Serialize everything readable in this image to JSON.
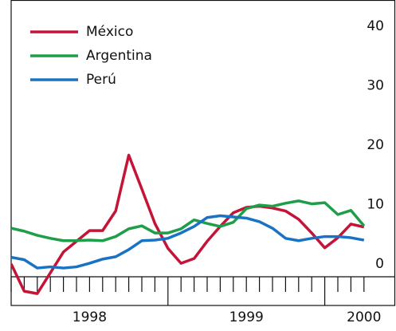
{
  "chart_data": {
    "type": "line",
    "categories": [
      null,
      null,
      null,
      null,
      null,
      null,
      "1998",
      null,
      null,
      null,
      null,
      null,
      null,
      null,
      null,
      null,
      null,
      null,
      "1999",
      null,
      null,
      null,
      null,
      null,
      null,
      null,
      null,
      "2000"
    ],
    "series": [
      {
        "name": "México",
        "color": "#c41438",
        "values": [
          0,
          -4.6,
          -5,
          -1.5,
          2,
          3.8,
          5.6,
          5.6,
          8.9,
          18.3,
          12.6,
          6.8,
          2.6,
          0.1,
          0.9,
          3.8,
          6.3,
          8.6,
          9.5,
          9.7,
          9.4,
          8.9,
          7.5,
          5.2,
          2.7,
          4.4,
          6.7,
          6.2
        ]
      },
      {
        "name": "Argentina",
        "color": "#1e9e48",
        "values": [
          6,
          5.5,
          4.8,
          4.3,
          3.9,
          3.9,
          4,
          3.9,
          4.6,
          5.9,
          6.4,
          5.2,
          5.2,
          5.9,
          7.4,
          6.8,
          6.3,
          7,
          9.3,
          9.9,
          9.7,
          10.2,
          10.6,
          10.1,
          10.3,
          8.3,
          9,
          6.4
        ]
      },
      {
        "name": "Perú",
        "color": "#1a72c2",
        "values": [
          1.1,
          0.7,
          -0.7,
          -0.5,
          -0.7,
          -0.5,
          0.1,
          0.8,
          1.2,
          2.4,
          3.9,
          4,
          4.3,
          5.2,
          6.3,
          7.8,
          8.1,
          7.9,
          7.7,
          7.1,
          6,
          4.3,
          3.9,
          4.3,
          4.6,
          4.6,
          4.4,
          4
        ]
      }
    ],
    "ylim": [
      -7,
      44.4
    ],
    "yticks": [
      0,
      10,
      20,
      30,
      40
    ],
    "legend": "upper-left"
  }
}
